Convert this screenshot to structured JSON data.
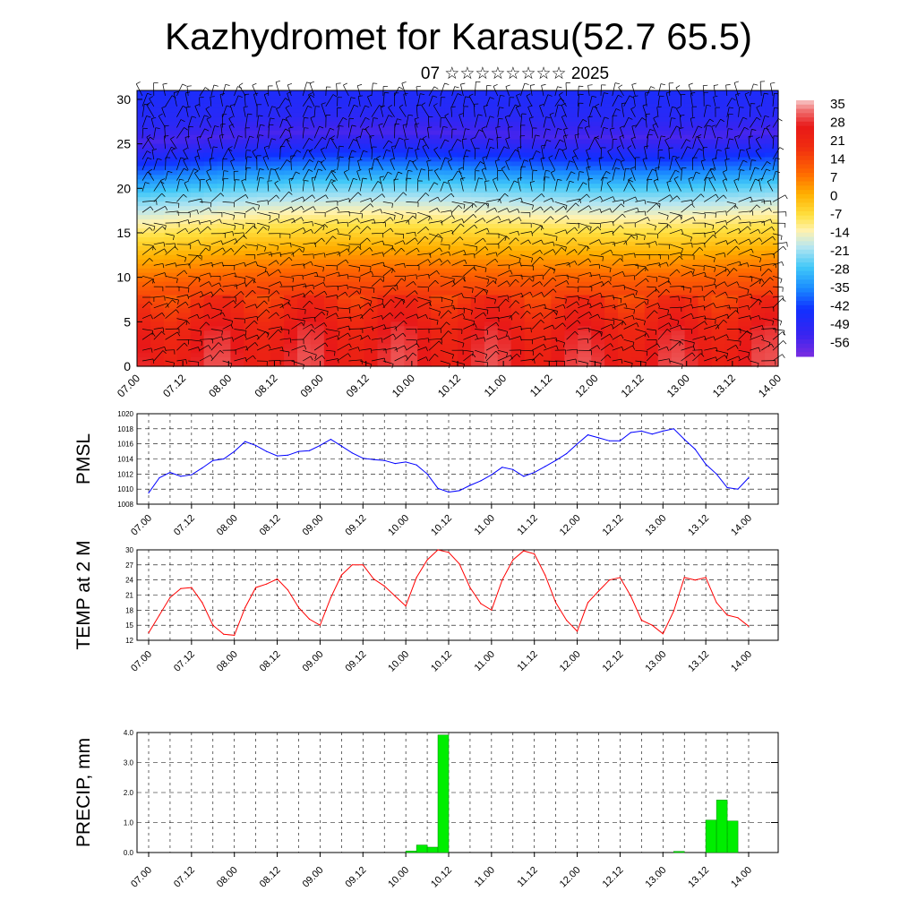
{
  "header": {
    "title": "Kazhydromet for Karasu(52.7 65.5)",
    "subtitle": "07 ☆☆☆☆☆☆☆☆ 2025"
  },
  "colors": {
    "pmsl_line": "#0000ff",
    "temp_line": "#ff0000",
    "precip_bar": "#00ee00",
    "precip_bar_edge": "#008800",
    "grid": "#000000"
  },
  "chart_data": [
    {
      "id": "crosssection",
      "type": "heatmap",
      "description_of_field": "temperature with wind barbs",
      "x_tick_labels": [
        "07.00",
        "07.12",
        "08.00",
        "08.12",
        "09.00",
        "09.12",
        "10.00",
        "10.12",
        "11.00",
        "11.12",
        "12.00",
        "12.12",
        "13.00",
        "13.12",
        "14.00"
      ],
      "y_tick_labels": [
        "0",
        "5",
        "10",
        "15",
        "20",
        "25",
        "30"
      ],
      "ylim": [
        0,
        31
      ],
      "colorbar_labels": [
        "35",
        "28",
        "21",
        "14",
        "7",
        "0",
        "-7",
        "-14",
        "-21",
        "-28",
        "-35",
        "-42",
        "-49",
        "-56"
      ],
      "colorbar_range": [
        -60,
        38
      ],
      "color_stops": [
        {
          "v": -60,
          "c": "#7b2de0"
        },
        {
          "v": -52,
          "c": "#3a24f0"
        },
        {
          "v": -42,
          "c": "#1030ff"
        },
        {
          "v": -34,
          "c": "#1a8cff"
        },
        {
          "v": -26,
          "c": "#40c8f8"
        },
        {
          "v": -18,
          "c": "#b8e6f0"
        },
        {
          "v": -12,
          "c": "#fff2b0"
        },
        {
          "v": -6,
          "c": "#ffe040"
        },
        {
          "v": 2,
          "c": "#ffb000"
        },
        {
          "v": 10,
          "c": "#ff6a00"
        },
        {
          "v": 20,
          "c": "#f02c10"
        },
        {
          "v": 28,
          "c": "#e81818"
        },
        {
          "v": 34,
          "c": "#f07070"
        },
        {
          "v": 38,
          "c": "#f8c8c8"
        }
      ],
      "temperature_profile": {
        "levels": [
          0,
          3,
          6,
          9,
          12,
          15,
          17,
          19,
          21,
          23,
          25,
          27,
          31
        ],
        "values": [
          28,
          26,
          20,
          12,
          2,
          -8,
          -16,
          -24,
          -34,
          -44,
          -54,
          -48,
          -44
        ]
      }
    },
    {
      "id": "pmsl",
      "type": "line",
      "ylabel": "PMSL",
      "ylim": [
        1008,
        1020
      ],
      "y_tick_labels": [
        "1008",
        "1010",
        "1012",
        "1014",
        "1016",
        "1018",
        "1020"
      ],
      "x_tick_labels": [
        "07.00",
        "07.12",
        "08.00",
        "08.12",
        "09.00",
        "09.12",
        "10.00",
        "10.12",
        "11.00",
        "11.12",
        "12.00",
        "12.12",
        "13.00",
        "13.12",
        "14.00"
      ],
      "series": [
        {
          "x": [
            0,
            3,
            6,
            9,
            12,
            15,
            18,
            21,
            24,
            27,
            30,
            33,
            36,
            39,
            42,
            45,
            48,
            51,
            54,
            57,
            60,
            63,
            66,
            69,
            72,
            75,
            78,
            81,
            84,
            87,
            90,
            93,
            96,
            99,
            102,
            105,
            108,
            111,
            114,
            117,
            120,
            123,
            126,
            129,
            132,
            135,
            138,
            141,
            144,
            147,
            150,
            153,
            156,
            159,
            162,
            165,
            168
          ],
          "values": [
            1009.5,
            1011.5,
            1012.2,
            1011.7,
            1011.9,
            1012.8,
            1013.8,
            1014.0,
            1015.0,
            1016.3,
            1015.8,
            1015.0,
            1014.4,
            1014.5,
            1015.0,
            1015.1,
            1015.8,
            1016.6,
            1015.7,
            1014.8,
            1014.1,
            1013.9,
            1013.8,
            1013.4,
            1013.6,
            1013.2,
            1012.0,
            1010.1,
            1009.6,
            1009.8,
            1010.5,
            1011.1,
            1011.9,
            1012.9,
            1012.6,
            1011.7,
            1012.2,
            1013.0,
            1013.8,
            1014.7,
            1016.0,
            1017.2,
            1016.8,
            1016.4,
            1016.4,
            1017.5,
            1017.7,
            1017.3,
            1017.7,
            1018.0,
            1016.6,
            1015.3,
            1013.3,
            1012.0,
            1010.2,
            1010.0,
            1011.5
          ]
        }
      ]
    },
    {
      "id": "temp2m",
      "type": "line",
      "ylabel": "TEMP at 2 M",
      "ylim": [
        12,
        30
      ],
      "y_tick_labels": [
        "12",
        "15",
        "18",
        "21",
        "24",
        "27",
        "30"
      ],
      "x_tick_labels": [
        "07.00",
        "07.12",
        "08.00",
        "08.12",
        "09.00",
        "09.12",
        "10.00",
        "10.12",
        "11.00",
        "11.12",
        "12.00",
        "12.12",
        "13.00",
        "13.12",
        "14.00"
      ],
      "series": [
        {
          "x": [
            0,
            3,
            6,
            9,
            12,
            15,
            18,
            21,
            24,
            27,
            30,
            33,
            36,
            39,
            42,
            45,
            48,
            51,
            54,
            57,
            60,
            63,
            66,
            69,
            72,
            75,
            78,
            81,
            84,
            87,
            90,
            93,
            96,
            99,
            102,
            105,
            108,
            111,
            114,
            117,
            120,
            123,
            126,
            129,
            132,
            135,
            138,
            141,
            144,
            147,
            150,
            153,
            156,
            159,
            162,
            165,
            168
          ],
          "values": [
            13.5,
            17.0,
            20.5,
            22.3,
            22.5,
            19.5,
            15.0,
            13.2,
            13.0,
            18.5,
            22.5,
            23.2,
            24.2,
            22.0,
            18.5,
            16.2,
            15.0,
            20.5,
            25.0,
            27.0,
            27.0,
            24.2,
            22.8,
            20.8,
            18.8,
            24.5,
            28.0,
            30.0,
            29.5,
            27.2,
            22.5,
            19.3,
            18.0,
            24.0,
            28.0,
            29.8,
            29.2,
            25.0,
            19.5,
            16.0,
            13.8,
            19.5,
            21.8,
            24.0,
            24.5,
            20.8,
            16.0,
            15.0,
            13.3,
            17.8,
            24.5,
            24.0,
            24.5,
            19.5,
            17.0,
            16.5,
            14.8
          ]
        }
      ]
    },
    {
      "id": "precip",
      "type": "bar",
      "ylabel": "PRECIP, mm",
      "ylim": [
        0,
        4
      ],
      "y_tick_labels": [
        "0.0",
        "1.0",
        "2.0",
        "3.0",
        "4.0"
      ],
      "x_tick_labels": [
        "07.00",
        "07.12",
        "08.00",
        "08.12",
        "09.00",
        "09.12",
        "10.00",
        "10.12",
        "11.00",
        "11.12",
        "12.00",
        "12.12",
        "13.00",
        "13.12",
        "14.00"
      ],
      "bar_width_hours": 3,
      "bars": [
        {
          "x": 72,
          "value": 0.05
        },
        {
          "x": 75,
          "value": 0.25
        },
        {
          "x": 78,
          "value": 0.18
        },
        {
          "x": 81,
          "value": 3.92
        },
        {
          "x": 147,
          "value": 0.04
        },
        {
          "x": 156,
          "value": 1.08
        },
        {
          "x": 159,
          "value": 1.75
        },
        {
          "x": 162,
          "value": 1.05
        }
      ]
    }
  ]
}
